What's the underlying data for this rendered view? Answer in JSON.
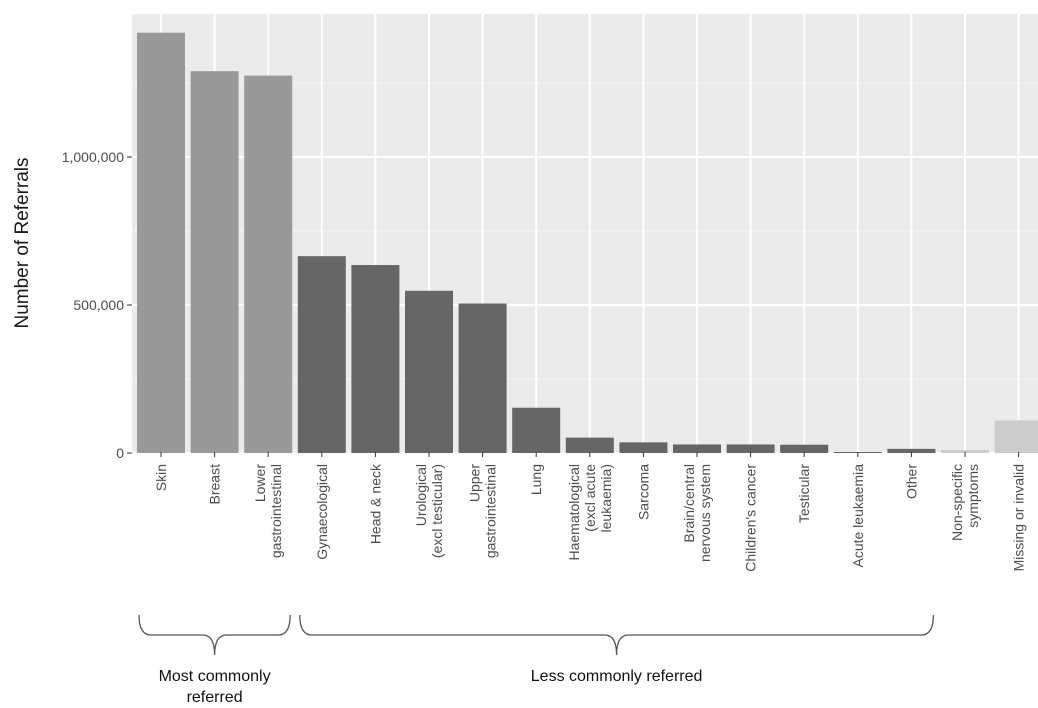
{
  "chart_data": {
    "type": "bar",
    "ylabel": "Number of Referrals",
    "xlabel": "",
    "ylim": [
      -50000,
      1480000
    ],
    "yticks": [
      0,
      500000,
      1000000
    ],
    "ytick_labels": [
      "0",
      "500,000",
      "1,000,000"
    ],
    "grid": true,
    "categories": [
      [
        "Skin"
      ],
      [
        "Breast"
      ],
      [
        "Lower",
        "gastrointestinal"
      ],
      [
        "Gynaecological"
      ],
      [
        "Head & neck"
      ],
      [
        "Urological",
        "(excl testicular)"
      ],
      [
        "Upper",
        "gastrointestinal"
      ],
      [
        "Lung"
      ],
      [
        "Haematological",
        "(excl acute",
        "leukaemia)"
      ],
      [
        "Sarcoma"
      ],
      [
        "Brain/central",
        "nervous system"
      ],
      [
        "Children's cancer"
      ],
      [
        "Testicular"
      ],
      [
        "Acute leukaemia"
      ],
      [
        "Other"
      ],
      [
        "Non-specific",
        "symptoms"
      ],
      [
        "Missing or invalid"
      ]
    ],
    "values": [
      1420000,
      1290000,
      1275000,
      665000,
      635000,
      548000,
      505000,
      153000,
      52000,
      36000,
      29000,
      29000,
      28000,
      3000,
      14000,
      10000,
      110000
    ],
    "bar_colors": [
      "#999999",
      "#999999",
      "#999999",
      "#666666",
      "#666666",
      "#666666",
      "#666666",
      "#666666",
      "#666666",
      "#666666",
      "#666666",
      "#666666",
      "#666666",
      "#666666",
      "#666666",
      "#cccccc",
      "#cccccc"
    ],
    "groups": [
      {
        "label": "Most commonly referred",
        "lines": [
          "Most commonly",
          "referred"
        ],
        "from": 0,
        "to": 2
      },
      {
        "label": "Less commonly referred",
        "lines": [
          "Less commonly referred"
        ],
        "from": 3,
        "to": 14
      }
    ]
  }
}
